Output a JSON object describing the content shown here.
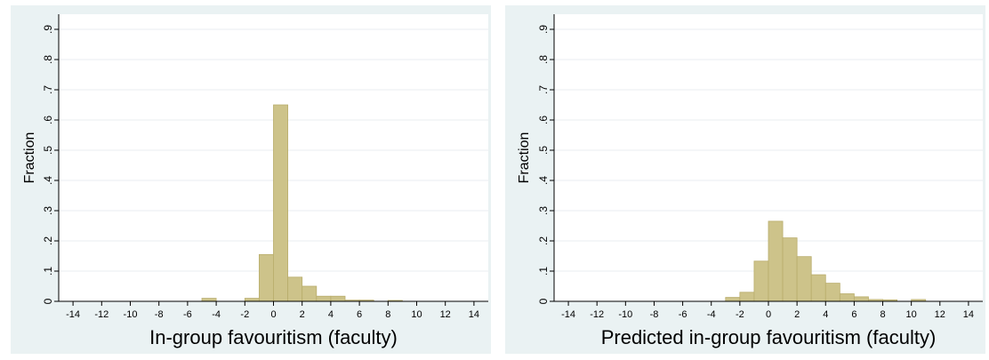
{
  "chart_data": [
    {
      "type": "bar",
      "title": "",
      "xlabel": "In-group favouritism (faculty)",
      "ylabel": "Fraction",
      "xlim": [
        -15,
        15
      ],
      "ylim": [
        0,
        0.95
      ],
      "bin_width": 1,
      "xticks": [
        "-14",
        "-12",
        "-10",
        "-8",
        "-6",
        "-4",
        "-2",
        "0",
        "2",
        "4",
        "6",
        "8",
        "10",
        "12",
        "14"
      ],
      "yticks": [
        "0",
        ".1",
        ".2",
        ".3",
        ".4",
        ".5",
        ".6",
        ".7",
        ".8",
        ".9"
      ],
      "grid": true,
      "bar_color": "#cdc38a",
      "bar_edge_color": "#b9ad6c",
      "plot_background": "#ffffff",
      "outer_background": "#eaf2f3",
      "bins": [
        {
          "x0": -5,
          "x1": -4,
          "value": 0.01
        },
        {
          "x0": -2,
          "x1": -1,
          "value": 0.01
        },
        {
          "x0": -1,
          "x1": 0,
          "value": 0.155
        },
        {
          "x0": 0,
          "x1": 1,
          "value": 0.65
        },
        {
          "x0": 1,
          "x1": 2,
          "value": 0.08
        },
        {
          "x0": 2,
          "x1": 3,
          "value": 0.05
        },
        {
          "x0": 3,
          "x1": 4,
          "value": 0.017
        },
        {
          "x0": 4,
          "x1": 5,
          "value": 0.017
        },
        {
          "x0": 5,
          "x1": 6,
          "value": 0.004
        },
        {
          "x0": 6,
          "x1": 7,
          "value": 0.004
        },
        {
          "x0": 8,
          "x1": 9,
          "value": 0.003
        }
      ]
    },
    {
      "type": "bar",
      "title": "",
      "xlabel": "Predicted in-group favouritism (faculty)",
      "ylabel": "Fraction",
      "xlim": [
        -15,
        15
      ],
      "ylim": [
        0,
        0.95
      ],
      "bin_width": 1,
      "xticks": [
        "-14",
        "-12",
        "-10",
        "-8",
        "-6",
        "-4",
        "-2",
        "0",
        "2",
        "4",
        "6",
        "8",
        "10",
        "12",
        "14"
      ],
      "yticks": [
        "0",
        ".1",
        ".2",
        ".3",
        ".4",
        ".5",
        ".6",
        ".7",
        ".8",
        ".9"
      ],
      "grid": true,
      "bar_color": "#cdc38a",
      "bar_edge_color": "#b9ad6c",
      "plot_background": "#ffffff",
      "outer_background": "#eaf2f3",
      "bins": [
        {
          "x0": -3,
          "x1": -2,
          "value": 0.013
        },
        {
          "x0": -2,
          "x1": -1,
          "value": 0.03
        },
        {
          "x0": -1,
          "x1": 0,
          "value": 0.133
        },
        {
          "x0": 0,
          "x1": 1,
          "value": 0.265
        },
        {
          "x0": 1,
          "x1": 2,
          "value": 0.21
        },
        {
          "x0": 2,
          "x1": 3,
          "value": 0.148
        },
        {
          "x0": 3,
          "x1": 4,
          "value": 0.088
        },
        {
          "x0": 4,
          "x1": 5,
          "value": 0.06
        },
        {
          "x0": 5,
          "x1": 6,
          "value": 0.025
        },
        {
          "x0": 6,
          "x1": 7,
          "value": 0.015
        },
        {
          "x0": 7,
          "x1": 8,
          "value": 0.006
        },
        {
          "x0": 8,
          "x1": 9,
          "value": 0.005
        },
        {
          "x0": 10,
          "x1": 11,
          "value": 0.006
        }
      ]
    }
  ]
}
